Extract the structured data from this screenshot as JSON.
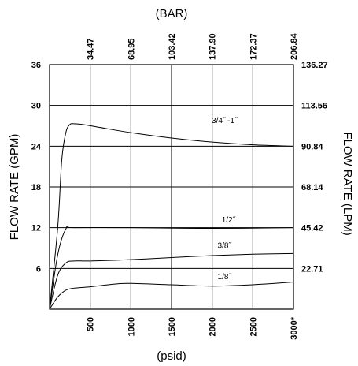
{
  "chart_data": {
    "type": "line",
    "top_axis_label": "(BAR)",
    "top_ticks": [
      "34.47",
      "68.95",
      "103.42",
      "137.90",
      "172.37",
      "206.84"
    ],
    "xlabel": "(psid)",
    "x_ticks": [
      "500",
      "1000",
      "1500",
      "2000",
      "2500",
      "3000*"
    ],
    "xlim": [
      0,
      3000
    ],
    "ylabel_left": "FLOW RATE (GPM)",
    "y_ticks_left": [
      "36",
      "30",
      "24",
      "18",
      "12",
      "6"
    ],
    "ylim": [
      0,
      36
    ],
    "ylabel_right": "FLOW RATE (LPM)",
    "y_ticks_right": [
      "136.27",
      "113.56",
      "90.84",
      "68.14",
      "45.42",
      "22.71"
    ],
    "grid": true,
    "series": [
      {
        "name": "3/4˝ -1˝",
        "x": [
          0,
          100,
          150,
          200,
          250,
          300,
          400,
          600,
          1000,
          1500,
          2000,
          2500,
          3000
        ],
        "y": [
          0,
          12,
          22,
          26,
          27.2,
          27.3,
          27.2,
          26.8,
          26,
          25.2,
          24.6,
          24.2,
          24
        ]
      },
      {
        "name": "1/2˝",
        "x": [
          0,
          100,
          200,
          300,
          1000,
          2000,
          3000
        ],
        "y": [
          0,
          8,
          11.8,
          12,
          12,
          11.9,
          12
        ]
      },
      {
        "name": "3/8˝",
        "x": [
          0,
          100,
          200,
          300,
          500,
          1000,
          1500,
          2000,
          2500,
          3000
        ],
        "y": [
          0,
          5,
          6.8,
          7.1,
          7.1,
          7.3,
          7.6,
          7.9,
          8.1,
          8.2
        ]
      },
      {
        "name": "1/8˝",
        "x": [
          0,
          100,
          200,
          300,
          500,
          800,
          1000,
          1500,
          2000,
          2500,
          3000
        ],
        "y": [
          0,
          1.8,
          2.8,
          3.1,
          3.3,
          3.7,
          3.8,
          3.6,
          3.4,
          3.6,
          4.0
        ]
      }
    ]
  }
}
